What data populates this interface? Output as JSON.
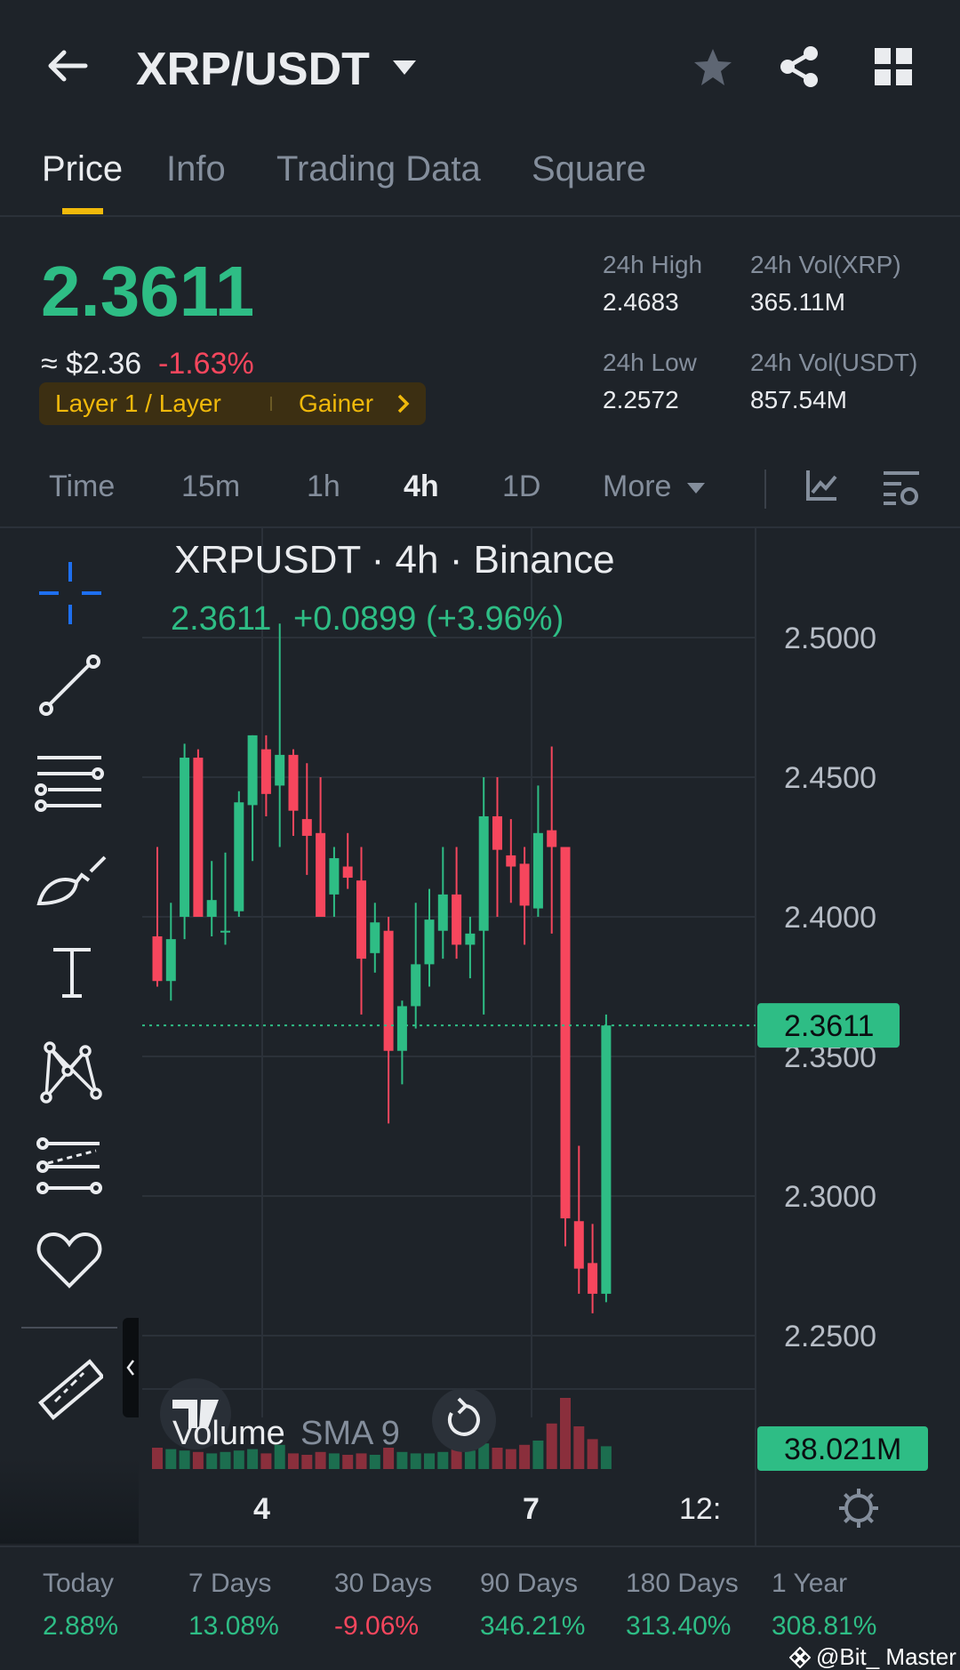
{
  "header": {
    "title": "XRP/USDT",
    "icons": [
      "back-arrow-icon",
      "caret-down-icon",
      "star-icon",
      "share-icon",
      "grid-icon"
    ]
  },
  "tabs": [
    {
      "label": "Price",
      "active": true
    },
    {
      "label": "Info",
      "active": false
    },
    {
      "label": "Trading Data",
      "active": false
    },
    {
      "label": "Square",
      "active": false
    }
  ],
  "ticker": {
    "last_price": "2.3611",
    "usd_approx": "≈ $2.36",
    "change_pct": "-1.63%",
    "tag_label": "Layer 1 / Layer",
    "tag_label2": "Gainer",
    "high_label": "24h High",
    "high_value": "2.4683",
    "low_label": "24h Low",
    "low_value": "2.2572",
    "vol_xrp_label": "24h Vol(XRP)",
    "vol_xrp_value": "365.11M",
    "vol_usdt_label": "24h Vol(USDT)",
    "vol_usdt_value": "857.54M"
  },
  "intervals": [
    {
      "label": "Time",
      "active": false
    },
    {
      "label": "15m",
      "active": false
    },
    {
      "label": "1h",
      "active": false
    },
    {
      "label": "4h",
      "active": true
    },
    {
      "label": "1D",
      "active": false
    },
    {
      "label": "More",
      "active": false
    }
  ],
  "chart_header": {
    "title": "XRPUSDT · 4h · Binance",
    "price": "2.3611",
    "change": "+0.0899 (+3.96%)"
  },
  "tools": [
    "crosshair-icon",
    "trendline-icon",
    "parallel-lines-icon",
    "brush-icon",
    "text-icon",
    "pattern-icon",
    "fib-icon",
    "favorite-heart-icon",
    "ruler-icon",
    "zoom-in-icon"
  ],
  "chart_data": {
    "type": "candlestick",
    "title": "XRPUSDT · 4h · Binance",
    "y_ticks": [
      "2.5000",
      "2.4500",
      "2.4000",
      "2.3500",
      "2.3000",
      "2.2500"
    ],
    "ylim": [
      2.24,
      2.515
    ],
    "x_ticks": [
      "4",
      "7",
      "12:"
    ],
    "current_price_label": "2.3611",
    "volume_label": "Volume",
    "volume_sma_label": "SMA 9",
    "volume_value_label": "38.021M",
    "candles": [
      {
        "o": 2.393,
        "h": 2.425,
        "l": 2.375,
        "c": 2.377
      },
      {
        "o": 2.377,
        "h": 2.405,
        "l": 2.37,
        "c": 2.392
      },
      {
        "o": 2.4,
        "h": 2.462,
        "l": 2.392,
        "c": 2.457
      },
      {
        "o": 2.457,
        "h": 2.46,
        "l": 2.4,
        "c": 2.4
      },
      {
        "o": 2.4,
        "h": 2.42,
        "l": 2.393,
        "c": 2.406
      },
      {
        "o": 2.395,
        "h": 2.423,
        "l": 2.39,
        "c": 2.395
      },
      {
        "o": 2.402,
        "h": 2.445,
        "l": 2.4,
        "c": 2.441
      },
      {
        "o": 2.44,
        "h": 2.465,
        "l": 2.42,
        "c": 2.465
      },
      {
        "o": 2.46,
        "h": 2.465,
        "l": 2.436,
        "c": 2.444
      },
      {
        "o": 2.447,
        "h": 2.505,
        "l": 2.425,
        "c": 2.458
      },
      {
        "o": 2.458,
        "h": 2.46,
        "l": 2.429,
        "c": 2.438
      },
      {
        "o": 2.435,
        "h": 2.455,
        "l": 2.415,
        "c": 2.429
      },
      {
        "o": 2.43,
        "h": 2.45,
        "l": 2.4,
        "c": 2.4
      },
      {
        "o": 2.408,
        "h": 2.425,
        "l": 2.4,
        "c": 2.421
      },
      {
        "o": 2.418,
        "h": 2.43,
        "l": 2.41,
        "c": 2.414
      },
      {
        "o": 2.413,
        "h": 2.425,
        "l": 2.365,
        "c": 2.385
      },
      {
        "o": 2.387,
        "h": 2.405,
        "l": 2.38,
        "c": 2.398
      },
      {
        "o": 2.395,
        "h": 2.4,
        "l": 2.326,
        "c": 2.352
      },
      {
        "o": 2.352,
        "h": 2.37,
        "l": 2.34,
        "c": 2.368
      },
      {
        "o": 2.368,
        "h": 2.405,
        "l": 2.36,
        "c": 2.383
      },
      {
        "o": 2.383,
        "h": 2.41,
        "l": 2.375,
        "c": 2.399
      },
      {
        "o": 2.395,
        "h": 2.425,
        "l": 2.385,
        "c": 2.408
      },
      {
        "o": 2.408,
        "h": 2.425,
        "l": 2.385,
        "c": 2.39
      },
      {
        "o": 2.39,
        "h": 2.4,
        "l": 2.378,
        "c": 2.394
      },
      {
        "o": 2.395,
        "h": 2.45,
        "l": 2.365,
        "c": 2.436
      },
      {
        "o": 2.436,
        "h": 2.45,
        "l": 2.4,
        "c": 2.424
      },
      {
        "o": 2.422,
        "h": 2.435,
        "l": 2.405,
        "c": 2.418
      },
      {
        "o": 2.419,
        "h": 2.425,
        "l": 2.39,
        "c": 2.404
      },
      {
        "o": 2.403,
        "h": 2.447,
        "l": 2.4,
        "c": 2.43
      },
      {
        "o": 2.431,
        "h": 2.461,
        "l": 2.394,
        "c": 2.425
      },
      {
        "o": 2.425,
        "h": 2.425,
        "l": 2.282,
        "c": 2.292
      },
      {
        "o": 2.291,
        "h": 2.318,
        "l": 2.265,
        "c": 2.274
      },
      {
        "o": 2.276,
        "h": 2.29,
        "l": 2.258,
        "c": 2.265
      },
      {
        "o": 2.265,
        "h": 2.365,
        "l": 2.262,
        "c": 2.3611
      }
    ],
    "volumes": [
      30,
      28,
      26,
      24,
      22,
      24,
      26,
      28,
      22,
      34,
      22,
      20,
      24,
      22,
      20,
      22,
      20,
      30,
      24,
      22,
      22,
      24,
      30,
      26,
      36,
      30,
      28,
      34,
      40,
      64,
      100,
      60,
      42,
      32
    ]
  },
  "performance": [
    {
      "label": "Today",
      "value": "2.88%",
      "dir": "up"
    },
    {
      "label": "7 Days",
      "value": "13.08%",
      "dir": "up"
    },
    {
      "label": "30 Days",
      "value": "-9.06%",
      "dir": "down"
    },
    {
      "label": "90 Days",
      "value": "346.21%",
      "dir": "up"
    },
    {
      "label": "180 Days",
      "value": "313.40%",
      "dir": "up"
    },
    {
      "label": "1 Year",
      "value": "308.81%",
      "dir": "up"
    }
  ],
  "watermark": "@Bit_ Master",
  "colors": {
    "up": "#2ebd85",
    "down": "#f6465d",
    "accent": "#f0b90b",
    "bg": "#1e2329"
  }
}
